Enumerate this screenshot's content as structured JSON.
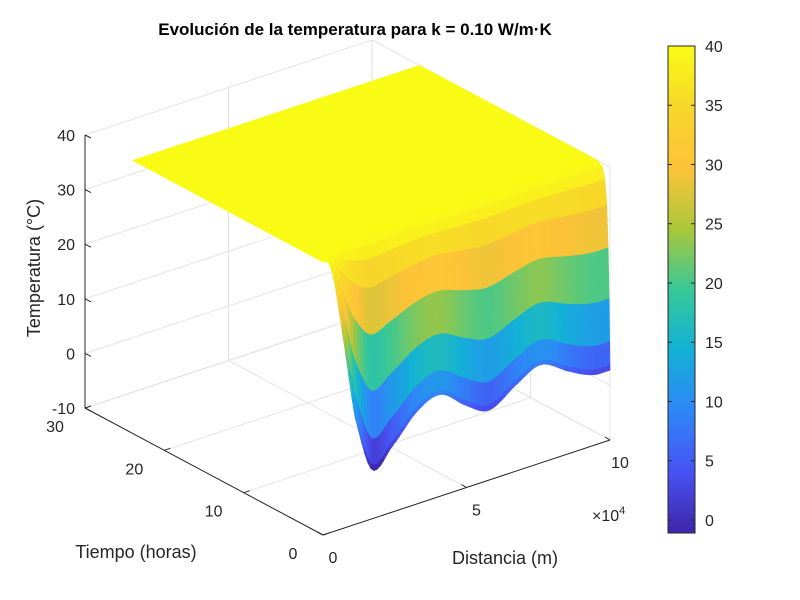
{
  "chart_data": {
    "type": "surface",
    "title": "Evolución de la temperatura para k = 0.10 W/m·K",
    "xlabel": "Distancia (m)",
    "ylabel": "Tiempo (horas)",
    "zlabel": "Temperatura (°C)",
    "x_exponent_label": "×10",
    "x_exponent_power": "4",
    "xlim": [
      0,
      100000
    ],
    "ylim": [
      0,
      30
    ],
    "zlim": [
      -10,
      40
    ],
    "x_ticks": [
      0,
      50000,
      100000
    ],
    "x_tick_labels": [
      "0",
      "5",
      "10"
    ],
    "y_ticks": [
      0,
      10,
      20,
      30
    ],
    "y_tick_labels": [
      "0",
      "10",
      "20",
      "30"
    ],
    "z_ticks": [
      -10,
      0,
      10,
      20,
      30,
      40
    ],
    "z_tick_labels": [
      "-10",
      "0",
      "10",
      "20",
      "30",
      "40"
    ],
    "grid": true,
    "colormap": "parula",
    "time_range_hours": [
      0,
      24
    ],
    "steady_temperature": 40,
    "initial_profile": {
      "x_m": [
        0,
        3000,
        7000,
        11000,
        17000,
        24000,
        33000,
        41000,
        50000,
        58000,
        68000,
        76000,
        86000,
        94000,
        100000
      ],
      "temperature_c": [
        40,
        38,
        25,
        10,
        -1,
        2,
        7,
        8.6,
        5,
        2.8,
        6,
        8,
        5,
        3,
        2.8
      ]
    },
    "colorbar": {
      "limits": [
        -1.1,
        40
      ],
      "ticks": [
        0,
        5,
        10,
        15,
        20,
        25,
        30,
        35,
        40
      ],
      "tick_labels": [
        "0",
        "5",
        "10",
        "15",
        "20",
        "25",
        "30",
        "35",
        "40"
      ],
      "location": "right"
    }
  }
}
